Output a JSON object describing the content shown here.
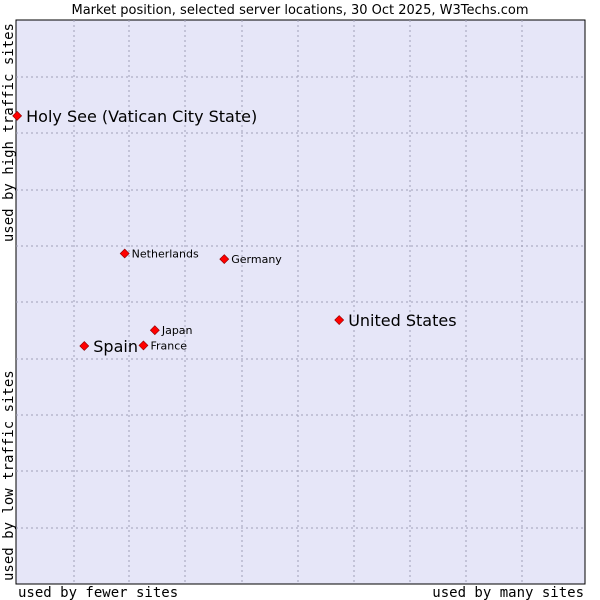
{
  "chart_data": {
    "type": "scatter",
    "title": "Market position, selected server locations, 30 Oct 2025, W3Techs.com",
    "xlabel_left": "used by fewer sites",
    "xlabel_right": "used by many sites",
    "ylabel_bottom": "used by low traffic sites",
    "ylabel_top": "used by high traffic sites",
    "xlim": [
      0,
      100
    ],
    "ylim": [
      0,
      100
    ],
    "grid": true,
    "point_color": "#ff0000",
    "plot_background": "#e6e6f8",
    "points": [
      {
        "name": "Holy See (Vatican City State)",
        "x": 0.2,
        "y": 83,
        "emphasis": true
      },
      {
        "name": "Netherlands",
        "x": 19.1,
        "y": 58.6,
        "emphasis": false
      },
      {
        "name": "Germany",
        "x": 36.6,
        "y": 57.6,
        "emphasis": false
      },
      {
        "name": "United States",
        "x": 56.8,
        "y": 46.8,
        "emphasis": true
      },
      {
        "name": "Japan",
        "x": 24.4,
        "y": 45.0,
        "emphasis": false
      },
      {
        "name": "Spain",
        "x": 12.0,
        "y": 42.2,
        "emphasis": true
      },
      {
        "name": "France",
        "x": 22.4,
        "y": 42.3,
        "emphasis": false
      }
    ]
  }
}
